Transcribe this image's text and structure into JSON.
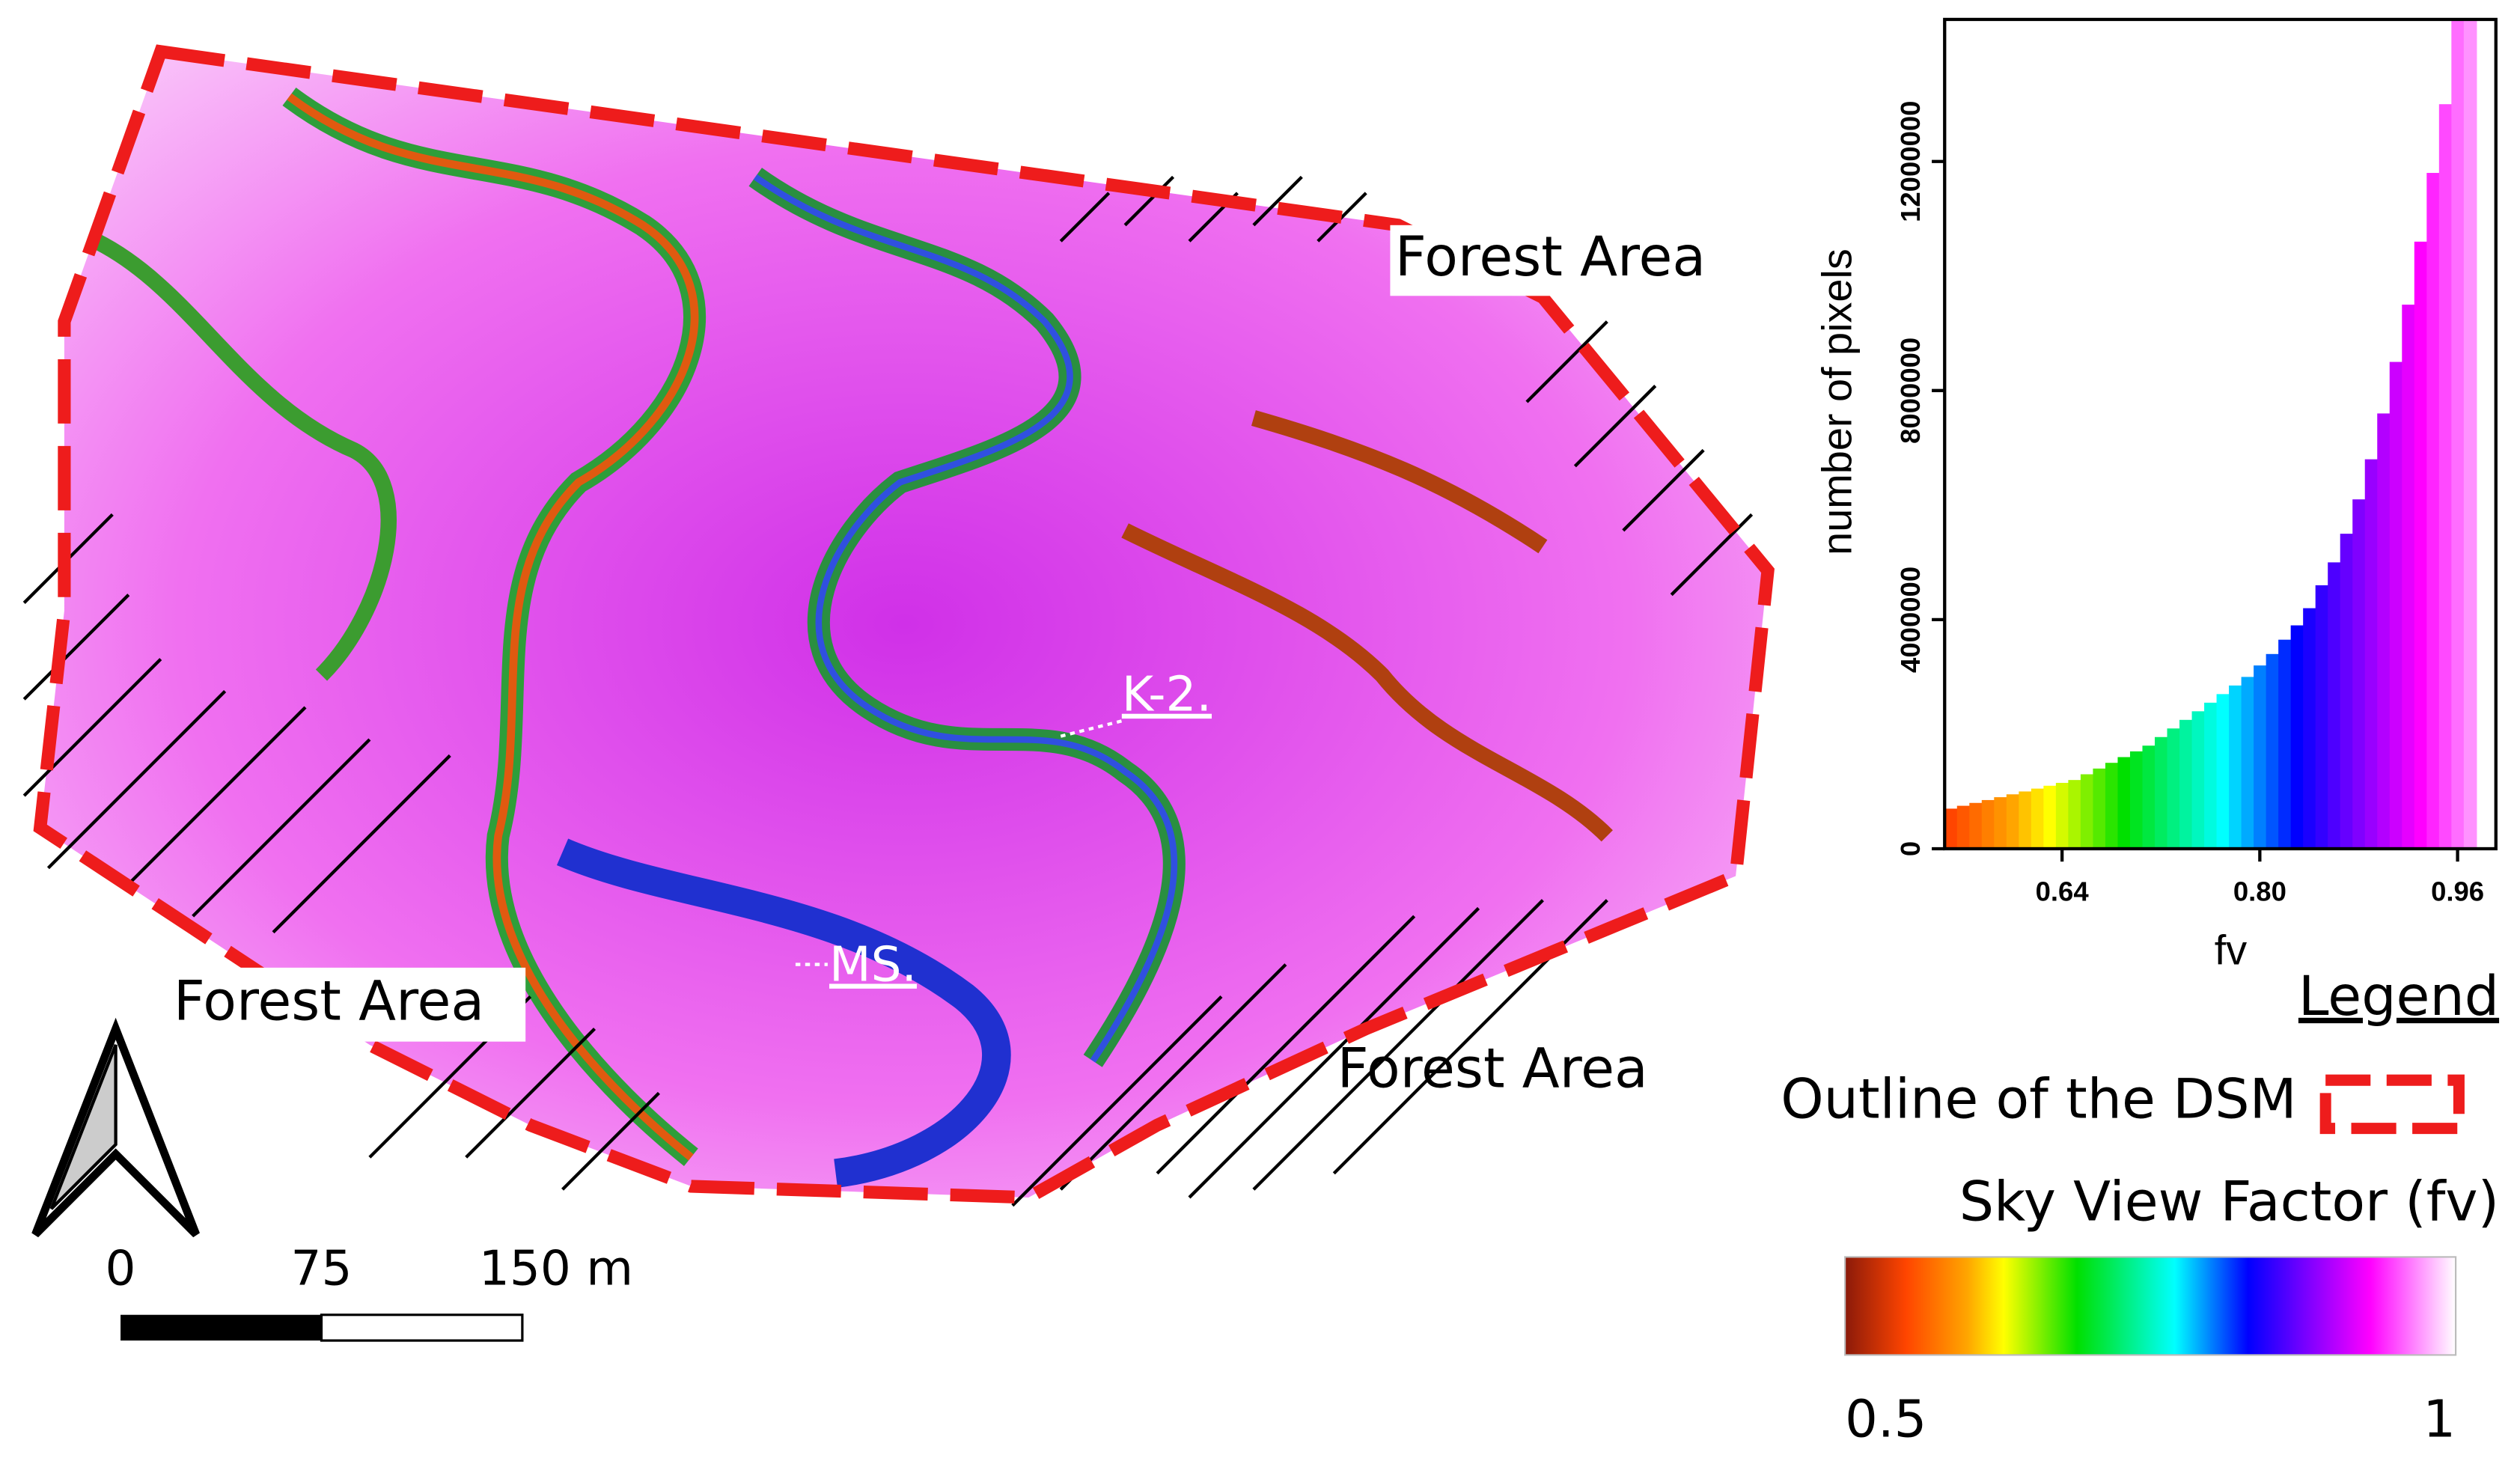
{
  "map": {
    "forest_labels": [
      "Forest Area",
      "Forest Area",
      "Forest Area"
    ],
    "site_labels": [
      "K-2.",
      "MS."
    ],
    "scale_labels": [
      "0",
      "75",
      "150 m"
    ],
    "legend_title": "Legend",
    "outline_label": "Outline of the DSM"
  },
  "chart_data": {
    "type": "histogram",
    "x_label": "fv",
    "y_label": "number of pixels",
    "bins": [
      0.545,
      0.555,
      0.565,
      0.575,
      0.585,
      0.595,
      0.605,
      0.615,
      0.625,
      0.635,
      0.645,
      0.655,
      0.665,
      0.675,
      0.685,
      0.695,
      0.705,
      0.715,
      0.725,
      0.735,
      0.745,
      0.755,
      0.765,
      0.775,
      0.785,
      0.795,
      0.805,
      0.815,
      0.825,
      0.835,
      0.845,
      0.855,
      0.865,
      0.875,
      0.885,
      0.895,
      0.905,
      0.915,
      0.925,
      0.935,
      0.945,
      0.955,
      0.965,
      0.975
    ],
    "values": [
      700000,
      750000,
      800000,
      850000,
      900000,
      950000,
      1000000,
      1050000,
      1100000,
      1150000,
      1200000,
      1300000,
      1400000,
      1500000,
      1600000,
      1700000,
      1800000,
      1950000,
      2100000,
      2250000,
      2400000,
      2550000,
      2700000,
      2850000,
      3000000,
      3200000,
      3400000,
      3650000,
      3900000,
      4200000,
      4600000,
      5000000,
      5500000,
      6100000,
      6800000,
      7600000,
      8500000,
      9500000,
      10600000,
      11800000,
      13000000,
      14480000,
      14480000
    ],
    "xlim": [
      0.545,
      0.991
    ],
    "ylim": [
      0,
      14480000
    ],
    "xticks": [
      0.64,
      {
        "value": 0.8,
        "label": "0.80"
      },
      0.96
    ],
    "yticks": [
      0,
      4000000,
      8000000,
      12000000
    ],
    "colorbar": {
      "label": "Sky View Factor (fv)",
      "min": 0.5,
      "max": 1,
      "color_stops": [
        {
          "value": 0.5,
          "color": "#8b1a0a"
        },
        {
          "value": 0.55,
          "color": "#ff4500"
        },
        {
          "value": 0.6,
          "color": "#ffa500"
        },
        {
          "value": 0.63,
          "color": "#ffff00"
        },
        {
          "value": 0.69,
          "color": "#00e000"
        },
        {
          "value": 0.77,
          "color": "#00ffff"
        },
        {
          "value": 0.83,
          "color": "#0000ff"
        },
        {
          "value": 0.88,
          "color": "#8000ff"
        },
        {
          "value": 0.93,
          "color": "#ff00ff"
        },
        {
          "value": 1,
          "color": "#ffffff"
        }
      ]
    }
  }
}
